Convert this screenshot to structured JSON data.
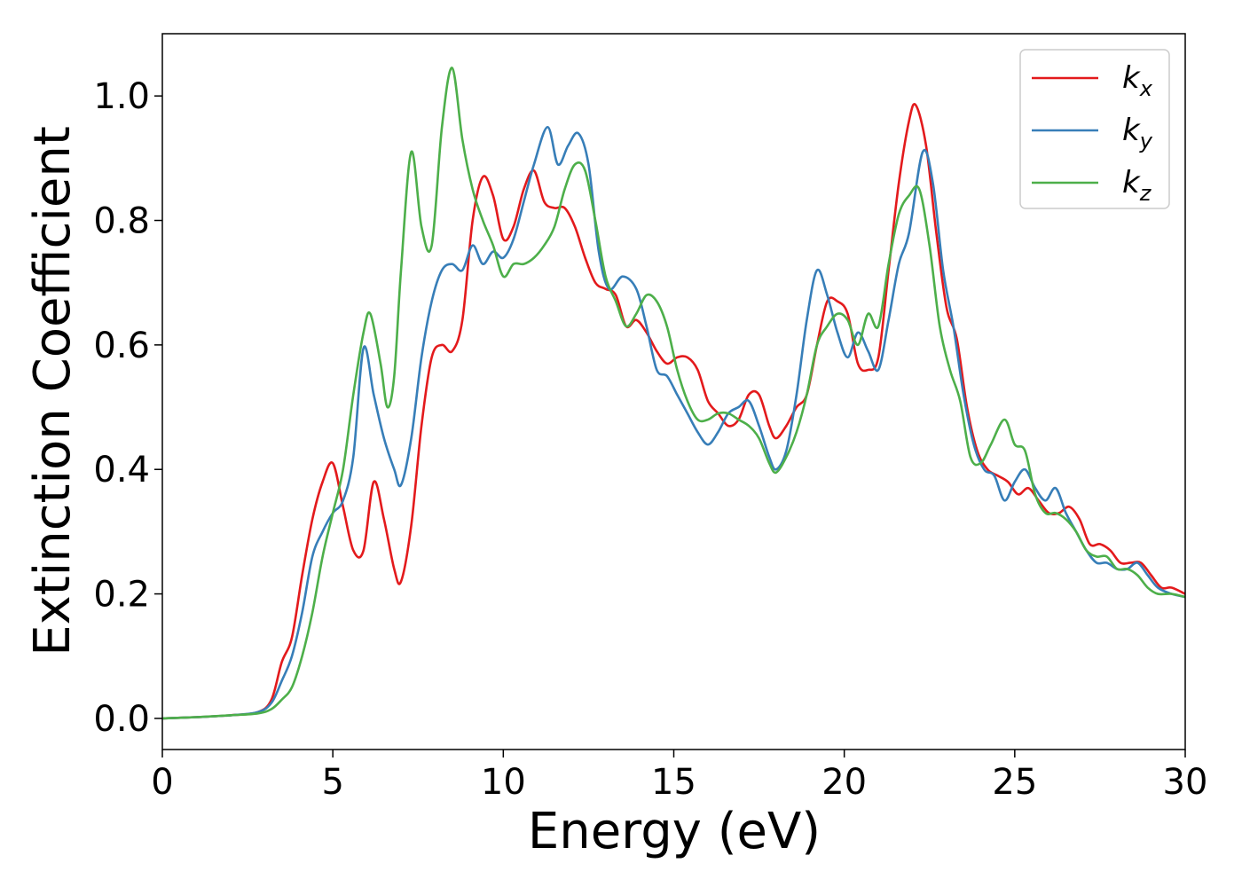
{
  "chart_data": {
    "type": "line",
    "title": "",
    "xlabel": "Energy (eV)",
    "ylabel": "Extinction Coefficient",
    "xlim": [
      0,
      30
    ],
    "ylim": [
      -0.05,
      1.1
    ],
    "x_ticks": [
      0,
      5,
      10,
      15,
      20,
      25,
      30
    ],
    "y_ticks": [
      0.0,
      0.2,
      0.4,
      0.6,
      0.8,
      1.0
    ],
    "x_tick_labels": [
      "0",
      "5",
      "10",
      "15",
      "20",
      "25",
      "30"
    ],
    "y_tick_labels": [
      "0.0",
      "0.2",
      "0.4",
      "0.6",
      "0.8",
      "1.0"
    ],
    "grid": false,
    "legend_position": "top-right",
    "series": [
      {
        "name": "k",
        "subscript": "x",
        "color": "#e31a1c",
        "points": [
          [
            0,
            0
          ],
          [
            1,
            0.002
          ],
          [
            2,
            0.005
          ],
          [
            2.8,
            0.01
          ],
          [
            3.2,
            0.03
          ],
          [
            3.5,
            0.09
          ],
          [
            3.8,
            0.13
          ],
          [
            4.1,
            0.23
          ],
          [
            4.4,
            0.32
          ],
          [
            4.7,
            0.38
          ],
          [
            5.0,
            0.41
          ],
          [
            5.3,
            0.34
          ],
          [
            5.6,
            0.27
          ],
          [
            5.9,
            0.27
          ],
          [
            6.2,
            0.38
          ],
          [
            6.5,
            0.32
          ],
          [
            6.8,
            0.24
          ],
          [
            7.0,
            0.22
          ],
          [
            7.3,
            0.31
          ],
          [
            7.6,
            0.47
          ],
          [
            7.9,
            0.58
          ],
          [
            8.2,
            0.6
          ],
          [
            8.5,
            0.59
          ],
          [
            8.8,
            0.64
          ],
          [
            9.1,
            0.8
          ],
          [
            9.4,
            0.87
          ],
          [
            9.7,
            0.84
          ],
          [
            10.0,
            0.77
          ],
          [
            10.3,
            0.79
          ],
          [
            10.6,
            0.85
          ],
          [
            10.9,
            0.88
          ],
          [
            11.2,
            0.83
          ],
          [
            11.5,
            0.82
          ],
          [
            11.8,
            0.82
          ],
          [
            12.1,
            0.79
          ],
          [
            12.4,
            0.74
          ],
          [
            12.7,
            0.7
          ],
          [
            13.0,
            0.69
          ],
          [
            13.3,
            0.68
          ],
          [
            13.6,
            0.63
          ],
          [
            13.9,
            0.64
          ],
          [
            14.2,
            0.62
          ],
          [
            14.5,
            0.59
          ],
          [
            14.8,
            0.57
          ],
          [
            15.1,
            0.58
          ],
          [
            15.4,
            0.58
          ],
          [
            15.7,
            0.56
          ],
          [
            16.0,
            0.51
          ],
          [
            16.3,
            0.49
          ],
          [
            16.6,
            0.47
          ],
          [
            16.9,
            0.48
          ],
          [
            17.2,
            0.52
          ],
          [
            17.5,
            0.52
          ],
          [
            17.8,
            0.47
          ],
          [
            18.0,
            0.45
          ],
          [
            18.3,
            0.47
          ],
          [
            18.6,
            0.5
          ],
          [
            18.9,
            0.52
          ],
          [
            19.2,
            0.6
          ],
          [
            19.5,
            0.67
          ],
          [
            19.8,
            0.67
          ],
          [
            20.1,
            0.65
          ],
          [
            20.4,
            0.57
          ],
          [
            20.7,
            0.56
          ],
          [
            21.0,
            0.58
          ],
          [
            21.3,
            0.72
          ],
          [
            21.6,
            0.86
          ],
          [
            21.9,
            0.96
          ],
          [
            22.1,
            0.985
          ],
          [
            22.4,
            0.92
          ],
          [
            22.7,
            0.78
          ],
          [
            23.0,
            0.66
          ],
          [
            23.3,
            0.61
          ],
          [
            23.6,
            0.5
          ],
          [
            23.9,
            0.43
          ],
          [
            24.2,
            0.4
          ],
          [
            24.5,
            0.39
          ],
          [
            24.8,
            0.38
          ],
          [
            25.1,
            0.36
          ],
          [
            25.4,
            0.37
          ],
          [
            25.7,
            0.35
          ],
          [
            26.0,
            0.33
          ],
          [
            26.3,
            0.33
          ],
          [
            26.6,
            0.34
          ],
          [
            26.9,
            0.32
          ],
          [
            27.2,
            0.28
          ],
          [
            27.5,
            0.28
          ],
          [
            27.8,
            0.27
          ],
          [
            28.1,
            0.25
          ],
          [
            28.4,
            0.25
          ],
          [
            28.7,
            0.25
          ],
          [
            29.0,
            0.23
          ],
          [
            29.3,
            0.21
          ],
          [
            29.6,
            0.21
          ],
          [
            30.0,
            0.2
          ]
        ]
      },
      {
        "name": "k",
        "subscript": "y",
        "color": "#377eb8",
        "points": [
          [
            0,
            0
          ],
          [
            1,
            0.002
          ],
          [
            2,
            0.005
          ],
          [
            2.8,
            0.01
          ],
          [
            3.2,
            0.025
          ],
          [
            3.5,
            0.06
          ],
          [
            3.8,
            0.1
          ],
          [
            4.1,
            0.17
          ],
          [
            4.4,
            0.26
          ],
          [
            4.7,
            0.3
          ],
          [
            5.0,
            0.33
          ],
          [
            5.3,
            0.35
          ],
          [
            5.6,
            0.42
          ],
          [
            5.9,
            0.595
          ],
          [
            6.2,
            0.52
          ],
          [
            6.5,
            0.45
          ],
          [
            6.8,
            0.4
          ],
          [
            7.0,
            0.375
          ],
          [
            7.3,
            0.45
          ],
          [
            7.6,
            0.58
          ],
          [
            7.9,
            0.67
          ],
          [
            8.2,
            0.72
          ],
          [
            8.5,
            0.73
          ],
          [
            8.8,
            0.72
          ],
          [
            9.1,
            0.76
          ],
          [
            9.4,
            0.73
          ],
          [
            9.7,
            0.75
          ],
          [
            10.0,
            0.74
          ],
          [
            10.3,
            0.77
          ],
          [
            10.6,
            0.83
          ],
          [
            10.9,
            0.89
          ],
          [
            11.3,
            0.95
          ],
          [
            11.6,
            0.89
          ],
          [
            11.9,
            0.92
          ],
          [
            12.2,
            0.94
          ],
          [
            12.5,
            0.89
          ],
          [
            12.8,
            0.75
          ],
          [
            13.1,
            0.69
          ],
          [
            13.5,
            0.71
          ],
          [
            13.9,
            0.69
          ],
          [
            14.2,
            0.63
          ],
          [
            14.5,
            0.56
          ],
          [
            14.8,
            0.55
          ],
          [
            15.1,
            0.52
          ],
          [
            15.4,
            0.49
          ],
          [
            15.7,
            0.46
          ],
          [
            16.0,
            0.44
          ],
          [
            16.3,
            0.46
          ],
          [
            16.6,
            0.49
          ],
          [
            16.9,
            0.5
          ],
          [
            17.2,
            0.51
          ],
          [
            17.5,
            0.47
          ],
          [
            17.8,
            0.42
          ],
          [
            18.0,
            0.4
          ],
          [
            18.3,
            0.43
          ],
          [
            18.6,
            0.52
          ],
          [
            18.9,
            0.64
          ],
          [
            19.2,
            0.72
          ],
          [
            19.5,
            0.68
          ],
          [
            19.8,
            0.62
          ],
          [
            20.1,
            0.58
          ],
          [
            20.4,
            0.62
          ],
          [
            20.7,
            0.59
          ],
          [
            21.0,
            0.56
          ],
          [
            21.3,
            0.64
          ],
          [
            21.6,
            0.73
          ],
          [
            21.9,
            0.78
          ],
          [
            22.3,
            0.91
          ],
          [
            22.6,
            0.86
          ],
          [
            22.9,
            0.72
          ],
          [
            23.2,
            0.63
          ],
          [
            23.5,
            0.52
          ],
          [
            23.8,
            0.44
          ],
          [
            24.1,
            0.4
          ],
          [
            24.4,
            0.39
          ],
          [
            24.7,
            0.35
          ],
          [
            25.0,
            0.38
          ],
          [
            25.3,
            0.4
          ],
          [
            25.6,
            0.37
          ],
          [
            25.9,
            0.35
          ],
          [
            26.2,
            0.37
          ],
          [
            26.5,
            0.33
          ],
          [
            26.8,
            0.3
          ],
          [
            27.1,
            0.27
          ],
          [
            27.4,
            0.25
          ],
          [
            27.7,
            0.25
          ],
          [
            28.0,
            0.24
          ],
          [
            28.3,
            0.24
          ],
          [
            28.6,
            0.25
          ],
          [
            28.9,
            0.23
          ],
          [
            29.2,
            0.21
          ],
          [
            29.6,
            0.2
          ],
          [
            30.0,
            0.195
          ]
        ]
      },
      {
        "name": "k",
        "subscript": "z",
        "color": "#4daf4a",
        "points": [
          [
            0,
            0
          ],
          [
            1,
            0.002
          ],
          [
            2,
            0.005
          ],
          [
            2.8,
            0.008
          ],
          [
            3.2,
            0.015
          ],
          [
            3.5,
            0.03
          ],
          [
            3.8,
            0.05
          ],
          [
            4.1,
            0.1
          ],
          [
            4.4,
            0.17
          ],
          [
            4.7,
            0.26
          ],
          [
            5.0,
            0.33
          ],
          [
            5.3,
            0.4
          ],
          [
            5.6,
            0.52
          ],
          [
            5.9,
            0.62
          ],
          [
            6.1,
            0.65
          ],
          [
            6.4,
            0.57
          ],
          [
            6.6,
            0.5
          ],
          [
            6.8,
            0.55
          ],
          [
            7.0,
            0.72
          ],
          [
            7.3,
            0.91
          ],
          [
            7.6,
            0.79
          ],
          [
            7.9,
            0.76
          ],
          [
            8.2,
            0.95
          ],
          [
            8.5,
            1.045
          ],
          [
            8.8,
            0.93
          ],
          [
            9.1,
            0.85
          ],
          [
            9.4,
            0.8
          ],
          [
            9.7,
            0.76
          ],
          [
            10.0,
            0.71
          ],
          [
            10.3,
            0.73
          ],
          [
            10.6,
            0.73
          ],
          [
            10.9,
            0.74
          ],
          [
            11.2,
            0.76
          ],
          [
            11.5,
            0.79
          ],
          [
            11.8,
            0.85
          ],
          [
            12.1,
            0.89
          ],
          [
            12.4,
            0.88
          ],
          [
            12.7,
            0.8
          ],
          [
            13.0,
            0.71
          ],
          [
            13.3,
            0.67
          ],
          [
            13.6,
            0.63
          ],
          [
            13.9,
            0.65
          ],
          [
            14.2,
            0.68
          ],
          [
            14.5,
            0.67
          ],
          [
            14.8,
            0.63
          ],
          [
            15.1,
            0.56
          ],
          [
            15.4,
            0.51
          ],
          [
            15.7,
            0.48
          ],
          [
            16.0,
            0.48
          ],
          [
            16.3,
            0.49
          ],
          [
            16.6,
            0.49
          ],
          [
            16.9,
            0.48
          ],
          [
            17.2,
            0.47
          ],
          [
            17.5,
            0.45
          ],
          [
            17.8,
            0.41
          ],
          [
            18.0,
            0.395
          ],
          [
            18.3,
            0.42
          ],
          [
            18.6,
            0.46
          ],
          [
            18.9,
            0.52
          ],
          [
            19.2,
            0.6
          ],
          [
            19.5,
            0.63
          ],
          [
            19.8,
            0.65
          ],
          [
            20.1,
            0.64
          ],
          [
            20.4,
            0.6
          ],
          [
            20.7,
            0.65
          ],
          [
            21.0,
            0.63
          ],
          [
            21.3,
            0.73
          ],
          [
            21.6,
            0.81
          ],
          [
            21.9,
            0.84
          ],
          [
            22.2,
            0.85
          ],
          [
            22.5,
            0.76
          ],
          [
            22.8,
            0.63
          ],
          [
            23.1,
            0.56
          ],
          [
            23.4,
            0.51
          ],
          [
            23.7,
            0.42
          ],
          [
            24.0,
            0.41
          ],
          [
            24.3,
            0.44
          ],
          [
            24.7,
            0.48
          ],
          [
            25.0,
            0.44
          ],
          [
            25.3,
            0.43
          ],
          [
            25.6,
            0.36
          ],
          [
            25.9,
            0.33
          ],
          [
            26.2,
            0.33
          ],
          [
            26.5,
            0.32
          ],
          [
            26.8,
            0.3
          ],
          [
            27.1,
            0.27
          ],
          [
            27.4,
            0.26
          ],
          [
            27.7,
            0.26
          ],
          [
            28.0,
            0.24
          ],
          [
            28.3,
            0.24
          ],
          [
            28.6,
            0.23
          ],
          [
            28.9,
            0.21
          ],
          [
            29.2,
            0.2
          ],
          [
            29.6,
            0.2
          ],
          [
            30.0,
            0.195
          ]
        ]
      }
    ]
  }
}
